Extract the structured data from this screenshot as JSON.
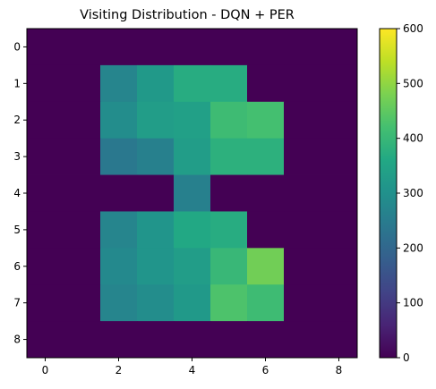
{
  "chart_data": {
    "type": "heatmap",
    "title": "Visiting Distribution - DQN + PER",
    "xlabel": "",
    "ylabel": "",
    "x_ticks": [
      0,
      2,
      4,
      6,
      8
    ],
    "y_ticks": [
      0,
      1,
      2,
      3,
      4,
      5,
      6,
      7,
      8
    ],
    "colorbar": {
      "min": 0,
      "max": 600,
      "ticks": [
        0,
        100,
        200,
        300,
        400,
        500,
        600
      ],
      "colormap": "viridis"
    },
    "grid": false,
    "matrix": [
      [
        0,
        0,
        0,
        0,
        0,
        0,
        0,
        0,
        0
      ],
      [
        0,
        0,
        270,
        320,
        370,
        370,
        0,
        0,
        0
      ],
      [
        0,
        0,
        290,
        330,
        340,
        410,
        420,
        0,
        0
      ],
      [
        0,
        0,
        240,
        260,
        330,
        380,
        380,
        0,
        0
      ],
      [
        0,
        0,
        0,
        0,
        260,
        0,
        0,
        0,
        0
      ],
      [
        0,
        0,
        270,
        310,
        360,
        370,
        0,
        0,
        0
      ],
      [
        0,
        0,
        280,
        310,
        330,
        400,
        470,
        0,
        0
      ],
      [
        0,
        0,
        270,
        290,
        320,
        430,
        410,
        0,
        0
      ],
      [
        0,
        0,
        0,
        0,
        0,
        0,
        0,
        0,
        0
      ]
    ]
  }
}
